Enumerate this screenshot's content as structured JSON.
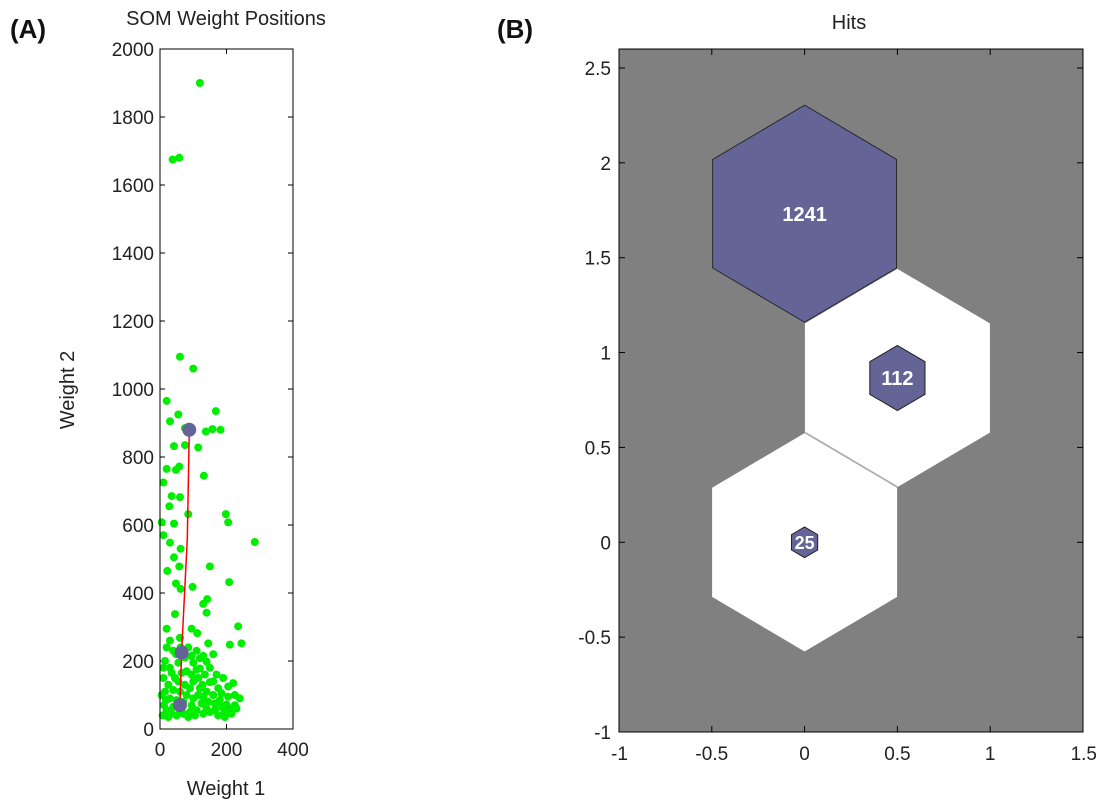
{
  "panels": [
    "(A)",
    "(B)"
  ],
  "chart_data": [
    {
      "type": "scatter",
      "title": "SOM Weight Positions",
      "xlabel": "Weight 1",
      "ylabel": "Weight 2",
      "xlim": [
        0,
        400
      ],
      "ylim": [
        0,
        2000
      ],
      "xticks": [
        "0",
        "200",
        "400"
      ],
      "yticks": [
        "0",
        "200",
        "400",
        "600",
        "800",
        "1000",
        "1200",
        "1400",
        "1600",
        "1800",
        "2000"
      ],
      "grid": false,
      "colors": {
        "data_points": "#00ee00",
        "neurons": "#646496",
        "connection": "#ff0000"
      },
      "data_points": [
        [
          120,
          1900
        ],
        [
          38,
          1675
        ],
        [
          58,
          1680
        ],
        [
          60,
          1095
        ],
        [
          100,
          1060
        ],
        [
          168,
          935
        ],
        [
          158,
          882
        ],
        [
          138,
          875
        ],
        [
          182,
          880
        ],
        [
          55,
          925
        ],
        [
          75,
          885
        ],
        [
          75,
          835
        ],
        [
          115,
          828
        ],
        [
          20,
          965
        ],
        [
          30,
          905
        ],
        [
          42,
          832
        ],
        [
          48,
          762
        ],
        [
          58,
          772
        ],
        [
          132,
          745
        ],
        [
          20,
          765
        ],
        [
          10,
          725
        ],
        [
          35,
          685
        ],
        [
          60,
          682
        ],
        [
          28,
          655
        ],
        [
          85,
          632
        ],
        [
          5,
          608
        ],
        [
          42,
          604
        ],
        [
          198,
          632
        ],
        [
          205,
          608
        ],
        [
          285,
          550
        ],
        [
          10,
          570
        ],
        [
          30,
          548
        ],
        [
          62,
          530
        ],
        [
          42,
          505
        ],
        [
          58,
          478
        ],
        [
          150,
          478
        ],
        [
          22,
          465
        ],
        [
          48,
          428
        ],
        [
          62,
          412
        ],
        [
          208,
          432
        ],
        [
          98,
          418
        ],
        [
          142,
          382
        ],
        [
          130,
          368
        ],
        [
          140,
          342
        ],
        [
          45,
          338
        ],
        [
          235,
          302
        ],
        [
          245,
          252
        ],
        [
          20,
          295
        ],
        [
          95,
          295
        ],
        [
          112,
          282
        ],
        [
          60,
          268
        ],
        [
          30,
          260
        ],
        [
          145,
          252
        ],
        [
          210,
          248
        ],
        [
          205,
          125
        ],
        [
          220,
          135
        ],
        [
          240,
          90
        ],
        [
          225,
          70
        ],
        [
          200,
          72
        ],
        [
          180,
          85
        ],
        [
          160,
          100
        ],
        [
          175,
          120
        ],
        [
          150,
          138
        ],
        [
          135,
          160
        ],
        [
          120,
          178
        ],
        [
          100,
          195
        ],
        [
          95,
          215
        ],
        [
          110,
          230
        ],
        [
          85,
          240
        ],
        [
          120,
          208
        ],
        [
          140,
          198
        ],
        [
          115,
          150
        ],
        [
          185,
          105
        ],
        [
          230,
          60
        ],
        [
          215,
          45
        ],
        [
          195,
          50
        ],
        [
          165,
          55
        ],
        [
          140,
          60
        ],
        [
          15,
          200
        ],
        [
          10,
          150
        ],
        [
          5,
          100
        ],
        [
          12,
          70
        ],
        [
          8,
          40
        ],
        [
          20,
          55
        ],
        [
          35,
          45
        ],
        [
          50,
          40
        ],
        [
          70,
          45
        ],
        [
          90,
          50
        ],
        [
          110,
          55
        ],
        [
          125,
          75
        ],
        [
          100,
          90
        ],
        [
          80,
          100
        ],
        [
          60,
          110
        ],
        [
          40,
          115
        ],
        [
          25,
          130
        ],
        [
          45,
          150
        ],
        [
          65,
          165
        ],
        [
          80,
          170
        ],
        [
          100,
          140
        ],
        [
          120,
          120
        ],
        [
          140,
          110
        ],
        [
          160,
          140
        ],
        [
          30,
          180
        ],
        [
          55,
          195
        ],
        [
          75,
          210
        ],
        [
          20,
          240
        ],
        [
          40,
          230
        ],
        [
          150,
          180
        ],
        [
          170,
          160
        ],
        [
          190,
          150
        ],
        [
          130,
          95
        ],
        [
          90,
          120
        ],
        [
          70,
          80
        ],
        [
          50,
          85
        ],
        [
          30,
          90
        ],
        [
          15,
          110
        ],
        [
          95,
          70
        ],
        [
          115,
          100
        ],
        [
          145,
          80
        ],
        [
          165,
          75
        ],
        [
          185,
          65
        ],
        [
          205,
          95
        ],
        [
          60,
          60
        ],
        [
          40,
          65
        ],
        [
          25,
          35
        ],
        [
          85,
          35
        ],
        [
          105,
          40
        ],
        [
          130,
          45
        ],
        [
          150,
          50
        ],
        [
          175,
          40
        ],
        [
          195,
          35
        ],
        [
          210,
          60
        ],
        [
          225,
          100
        ],
        [
          55,
          140
        ],
        [
          35,
          165
        ],
        [
          75,
          130
        ],
        [
          95,
          160
        ],
        [
          110,
          175
        ],
        [
          130,
          215
        ],
        [
          18,
          85
        ],
        [
          48,
          220
        ],
        [
          62,
          240
        ],
        [
          160,
          220
        ],
        [
          10,
          180
        ],
        [
          128,
          130
        ]
      ],
      "neurons": [
        [
          88,
          880
        ],
        [
          65,
          225
        ],
        [
          60,
          70
        ]
      ],
      "connection_path": [
        [
          88,
          880
        ],
        [
          82,
          560
        ],
        [
          65,
          225
        ],
        [
          60,
          70
        ]
      ]
    },
    {
      "type": "heatmap",
      "title": "Hits",
      "xlabel": "",
      "ylabel": "",
      "xlim": [
        -1,
        1.5
      ],
      "ylim": [
        -1,
        2.6
      ],
      "xticks": [
        "-1",
        "-0.5",
        "0",
        "0.5",
        "1",
        "1.5"
      ],
      "yticks": [
        "-1",
        "-0.5",
        "0",
        "0.5",
        "1",
        "1.5",
        "2",
        "2.5"
      ],
      "grid": false,
      "colors": {
        "background": "#808080",
        "cell": "#ffffff",
        "hit": "#646496",
        "cell_edge": "#222222"
      },
      "cells": [
        {
          "x": 0.0,
          "y": 1.732,
          "hits": 1241,
          "label": "1241"
        },
        {
          "x": 0.5,
          "y": 0.866,
          "hits": 112,
          "label": "112"
        },
        {
          "x": 0.0,
          "y": 0.0,
          "hits": 25,
          "label": "25"
        }
      ]
    }
  ]
}
